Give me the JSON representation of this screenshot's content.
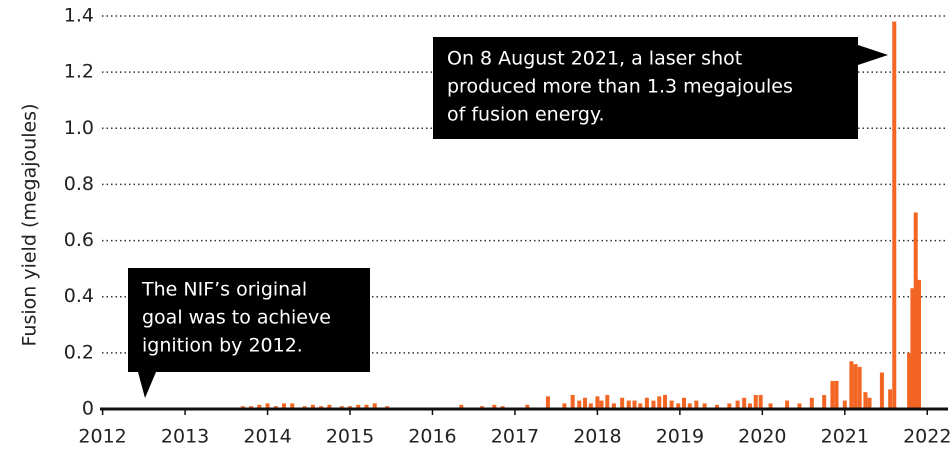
{
  "chart_data": {
    "type": "bar",
    "ylabel": "Fusion yield (megajoules)",
    "color": "#f26522",
    "xlim": [
      2011.75,
      2022.3
    ],
    "ylim": [
      0,
      1.4
    ],
    "xticks": [
      2012,
      2013,
      2014,
      2015,
      2016,
      2017,
      2018,
      2019,
      2020,
      2021,
      2022
    ],
    "yticks": [
      0,
      0.2,
      0.4,
      0.6,
      0.8,
      {
        "value": 1,
        "label": "1.0"
      },
      1.2,
      1.4
    ],
    "grid": true,
    "x": [
      2013.7,
      2013.8,
      2013.9,
      2014.0,
      2014.1,
      2014.2,
      2014.3,
      2014.45,
      2014.55,
      2014.65,
      2014.75,
      2014.9,
      2015.0,
      2015.1,
      2015.2,
      2015.3,
      2015.45,
      2016.35,
      2016.6,
      2016.75,
      2016.85,
      2017.15,
      2017.4,
      2017.6,
      2017.7,
      2017.78,
      2017.85,
      2017.92,
      2018.0,
      2018.05,
      2018.12,
      2018.2,
      2018.3,
      2018.38,
      2018.45,
      2018.52,
      2018.6,
      2018.68,
      2018.75,
      2018.82,
      2018.9,
      2018.98,
      2019.05,
      2019.12,
      2019.2,
      2019.3,
      2019.45,
      2019.6,
      2019.7,
      2019.78,
      2019.85,
      2019.92,
      2019.98,
      2020.1,
      2020.3,
      2020.45,
      2020.6,
      2020.75,
      2020.85,
      2020.9,
      2021.0,
      2021.08,
      2021.13,
      2021.18,
      2021.25,
      2021.3,
      2021.45,
      2021.55,
      2021.6,
      2021.78,
      2021.82,
      2021.86,
      2021.9
    ],
    "values": [
      0.01,
      0.01,
      0.015,
      0.02,
      0.01,
      0.02,
      0.02,
      0.01,
      0.015,
      0.01,
      0.015,
      0.01,
      0.01,
      0.015,
      0.015,
      0.02,
      0.01,
      0.015,
      0.01,
      0.015,
      0.01,
      0.015,
      0.045,
      0.02,
      0.05,
      0.03,
      0.04,
      0.02,
      0.045,
      0.03,
      0.05,
      0.02,
      0.04,
      0.03,
      0.03,
      0.02,
      0.04,
      0.03,
      0.045,
      0.05,
      0.03,
      0.02,
      0.04,
      0.02,
      0.03,
      0.02,
      0.015,
      0.02,
      0.03,
      0.04,
      0.02,
      0.05,
      0.05,
      0.02,
      0.03,
      0.02,
      0.04,
      0.05,
      0.1,
      0.1,
      0.03,
      0.17,
      0.16,
      0.15,
      0.06,
      0.04,
      0.13,
      0.07,
      1.38,
      0.2,
      0.43,
      0.7,
      0.46
    ],
    "annotations": [
      {
        "lines": [
          "On 8 August 2021, a laser shot",
          "produced more than 1.3 megajoules",
          "of fusion energy."
        ]
      },
      {
        "lines": [
          "The NIF’s original",
          "goal was to achieve",
          "ignition by 2012."
        ]
      }
    ]
  }
}
